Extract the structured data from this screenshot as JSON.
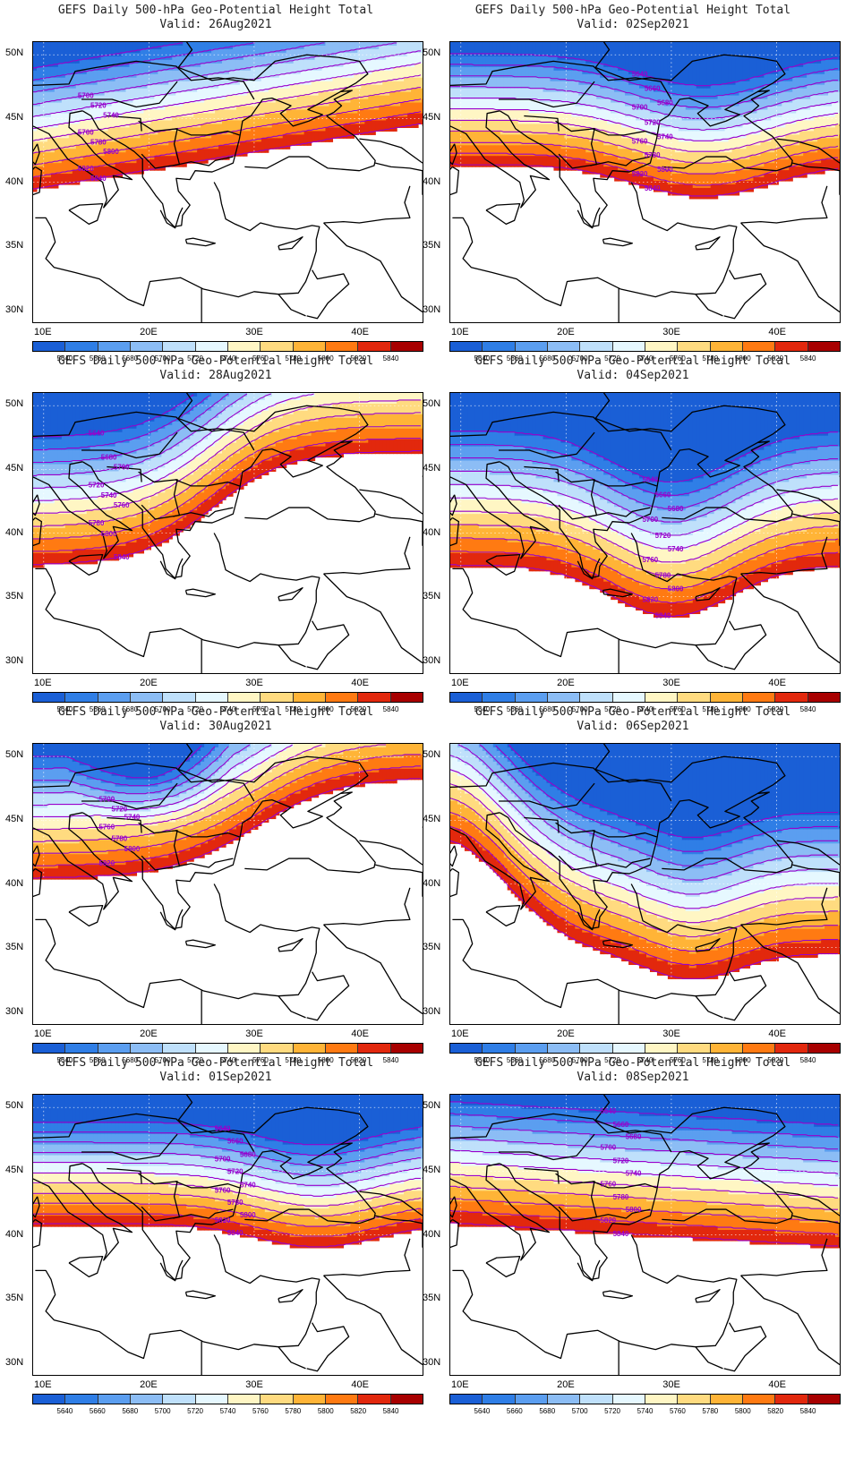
{
  "panels": [
    {
      "title": "GEFS Daily 500-hPa Geo-Potential Height Total",
      "valid": "Valid: 26Aug2021",
      "pattern": "ridge-flat"
    },
    {
      "title": "GEFS Daily 500-hPa Geo-Potential Height Total",
      "valid": "Valid: 02Sep2021",
      "pattern": "trough-ne"
    },
    {
      "title": "GEFS Daily 500-hPa Geo-Potential Height Total",
      "valid": "Valid: 28Aug2021",
      "pattern": "ridge-steep"
    },
    {
      "title": "GEFS Daily 500-hPa Geo-Potential Height Total",
      "valid": "Valid: 04Sep2021",
      "pattern": "trough-deep"
    },
    {
      "title": "GEFS Daily 500-hPa Geo-Potential Height Total",
      "valid": "Valid: 30Aug2021",
      "pattern": "low-nw"
    },
    {
      "title": "GEFS Daily 500-hPa Geo-Potential Height Total",
      "valid": "Valid: 06Sep2021",
      "pattern": "trough-east"
    },
    {
      "title": "GEFS Daily 500-hPa Geo-Potential Height Total",
      "valid": "Valid: 01Sep2021",
      "pattern": "trough-balkan"
    },
    {
      "title": "GEFS Daily 500-hPa Geo-Potential Height Total",
      "valid": "Valid: 08Sep2021",
      "pattern": "zonal"
    }
  ],
  "axes": {
    "lat_labels": [
      "50N",
      "45N",
      "40N",
      "35N",
      "30N"
    ],
    "lon_labels": [
      "10E",
      "20E",
      "30E",
      "40E"
    ],
    "lat_range": [
      29,
      51
    ],
    "lon_range": [
      9,
      46
    ]
  },
  "colorbar": {
    "levels": [
      "5640",
      "5660",
      "5680",
      "5700",
      "5720",
      "5740",
      "5760",
      "5780",
      "5800",
      "5820",
      "5840"
    ],
    "colors": [
      "#1a5fd6",
      "#2f7ee6",
      "#5b9ef0",
      "#8cbdf5",
      "#bfe0fb",
      "#e6f8ff",
      "#fff6c4",
      "#ffdb80",
      "#ffb437",
      "#ff7a12",
      "#e2280d",
      "#a80000"
    ]
  },
  "contour_color": "#9900cc",
  "contour_labels": {
    "ridge-flat": [
      "5700",
      "5720",
      "5740",
      "5760",
      "5780",
      "5800",
      "5820",
      "5840"
    ],
    "trough-ne": [
      "5640",
      "5660",
      "5680",
      "5700",
      "5720",
      "5740",
      "5760",
      "5780",
      "5800",
      "5820",
      "5840"
    ],
    "ridge-steep": [
      "5640",
      "5680",
      "5700",
      "5720",
      "5740",
      "5760",
      "5780",
      "5800",
      "5840"
    ],
    "trough-deep": [
      "5640",
      "5660",
      "5680",
      "5700",
      "5720",
      "5740",
      "5760",
      "5780",
      "5800",
      "5820",
      "5840"
    ],
    "low-nw": [
      "5700",
      "5720",
      "5740",
      "5760",
      "5780",
      "5800",
      "5820"
    ],
    "trough-east": [],
    "trough-balkan": [
      "5640",
      "5660",
      "5680",
      "5700",
      "5720",
      "5740",
      "5760",
      "5780",
      "5800",
      "5820",
      "5840"
    ],
    "zonal": [
      "5640",
      "5660",
      "5680",
      "5700",
      "5720",
      "5740",
      "5760",
      "5780",
      "5800",
      "5820",
      "5840"
    ]
  }
}
